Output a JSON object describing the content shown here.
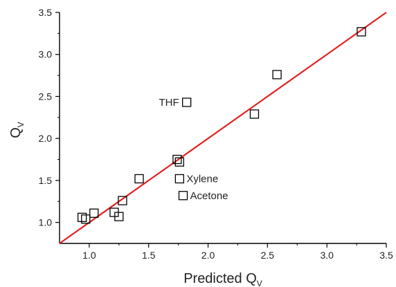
{
  "chart_data": {
    "type": "scatter",
    "xlabel": "Predicted Q",
    "xlabel_sub": "V",
    "ylabel": "Q",
    "ylabel_sub": "V",
    "xlim": [
      0.75,
      3.5
    ],
    "ylim": [
      0.75,
      3.5
    ],
    "xticks": [
      "1.0",
      "1.5",
      "2.0",
      "2.5",
      "3.0",
      "3.5"
    ],
    "yticks": [
      "1.0",
      "1.5",
      "2.0",
      "2.5",
      "3.0",
      "3.5"
    ],
    "grid": false,
    "colors": {
      "points": "#000000",
      "fit": "#e02020",
      "axes": "#000000"
    },
    "series": [
      {
        "marker": "open-square",
        "points": [
          {
            "x": 0.94,
            "y": 1.06
          },
          {
            "x": 0.97,
            "y": 1.04
          },
          {
            "x": 1.04,
            "y": 1.11
          },
          {
            "x": 1.21,
            "y": 1.12
          },
          {
            "x": 1.25,
            "y": 1.07
          },
          {
            "x": 1.28,
            "y": 1.26
          },
          {
            "x": 1.42,
            "y": 1.52
          },
          {
            "x": 1.74,
            "y": 1.75
          },
          {
            "x": 1.76,
            "y": 1.72
          },
          {
            "x": 1.76,
            "y": 1.52
          },
          {
            "x": 1.79,
            "y": 1.32
          },
          {
            "x": 1.82,
            "y": 2.43
          },
          {
            "x": 2.39,
            "y": 2.29
          },
          {
            "x": 2.58,
            "y": 2.76
          },
          {
            "x": 3.29,
            "y": 3.27
          }
        ]
      }
    ],
    "fit_line": {
      "x": [
        0.75,
        3.5
      ],
      "y": [
        0.75,
        3.5
      ]
    },
    "annotations": [
      {
        "text": "THF",
        "x": 1.82,
        "y": 2.43,
        "side": "left"
      },
      {
        "text": "Xylene",
        "x": 1.76,
        "y": 1.52,
        "side": "right"
      },
      {
        "text": "Acetone",
        "x": 1.79,
        "y": 1.32,
        "side": "right"
      }
    ]
  }
}
